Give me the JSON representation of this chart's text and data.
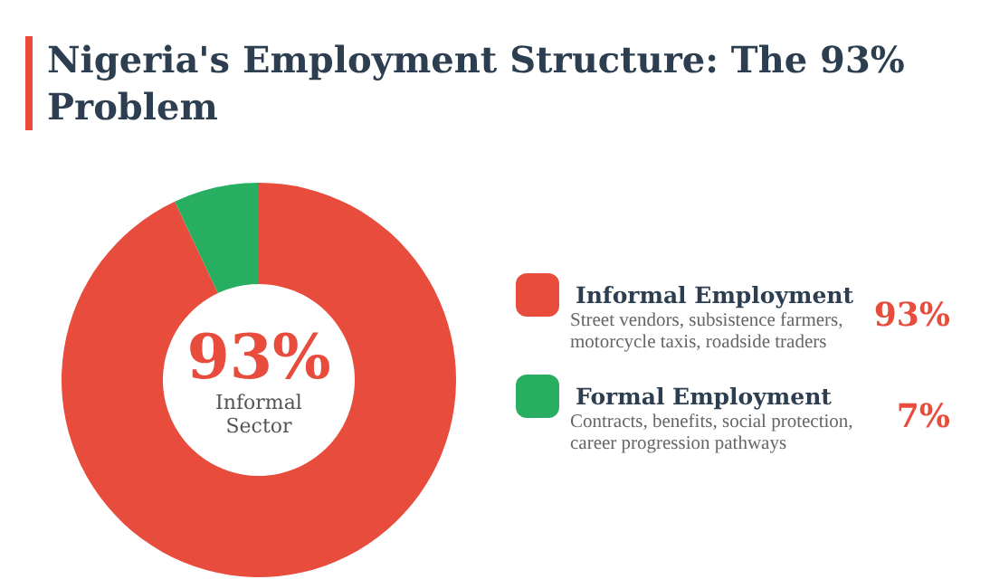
{
  "chart_data": {
    "type": "donut",
    "title": "Nigeria's Employment Structure: The 93% Problem",
    "categories": [
      "Informal Employment",
      "Formal Employment"
    ],
    "values": [
      93,
      7
    ],
    "colors": [
      "#e74c3c",
      "#27ae60"
    ],
    "value_labels": [
      "93%",
      "7%"
    ],
    "legend": "right",
    "annotations": [
      "93%",
      "Informal Sector",
      "Street vendors, subsistence farmers, motorcycle taxis, roadside traders",
      "Contracts, benefits, social protection, career progression pathways"
    ]
  }
}
